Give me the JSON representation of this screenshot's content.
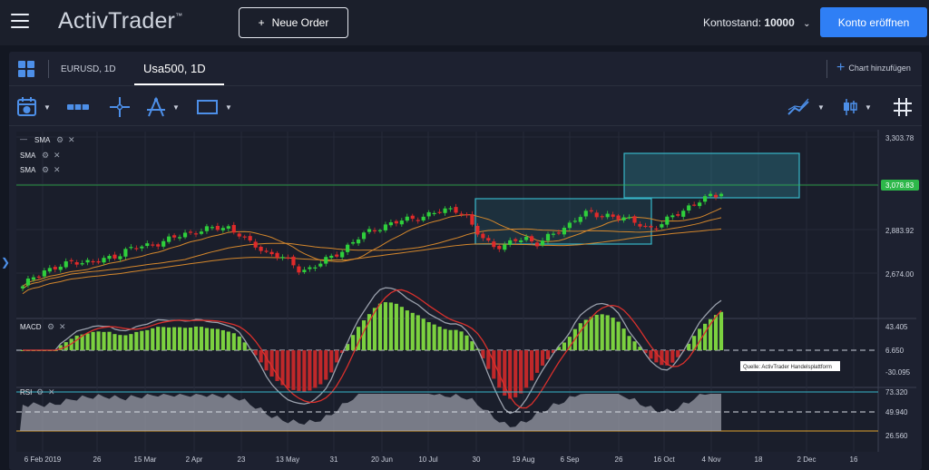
{
  "header": {
    "logo": "ActivTrader",
    "logo_tm": "™",
    "new_order_label": "Neue Order",
    "new_order_icon": "+",
    "balance_label": "Kontostand:",
    "balance_value": "10000",
    "open_account_label": "Konto eröffnen"
  },
  "tabs": {
    "tab1": "EURUSD, 1D",
    "tab2": "Usa500, 1D",
    "add_chart": "Chart hinzufügen"
  },
  "toolbar": {
    "icons": [
      "calendar-icon",
      "timeframe-icon",
      "crosshair-icon",
      "drawing-icon",
      "rectangle-icon",
      "indicator-icon",
      "candle-type-icon",
      "grid-icon"
    ]
  },
  "indicators": {
    "sma1": "SMA",
    "sma2": "SMA",
    "sma3": "SMA",
    "macd": "MACD",
    "rsi": "RSI"
  },
  "price_axis": [
    "3,303.78",
    "3,078.83",
    "2,883.92",
    "2,674.00"
  ],
  "current_price": "3,078.83",
  "macd_axis": [
    "43.405",
    "6.650",
    "-30.095"
  ],
  "rsi_axis": [
    "73.320",
    "49.940",
    "26.560"
  ],
  "source_note": "Quelle: ActivTrader Handelsplattform",
  "x_axis": [
    "6 Feb 2019",
    "26",
    "15 Mar",
    "2 Apr",
    "23",
    "13 May",
    "31",
    "20 Jun",
    "10 Jul",
    "30",
    "19 Aug",
    "6 Sep",
    "26",
    "16 Oct",
    "4 Nov",
    "18",
    "2 Dec",
    "16"
  ],
  "colors": {
    "accent": "#2f7ff5",
    "up_candle": "#2fcf3c",
    "down_candle": "#e02a2a",
    "sma": "#d4872c",
    "highlight_box": "#37b6c8",
    "price_tag": "#2db84a"
  },
  "chart_data": {
    "type": "candlestick",
    "symbol": "Usa500",
    "timeframe": "1D",
    "ylim": [
      2580,
      3330
    ],
    "close_approx": [
      2700,
      2745,
      2770,
      2775,
      2790,
      2810,
      2805,
      2800,
      2815,
      2830,
      2850,
      2860,
      2870,
      2880,
      2890,
      2905,
      2920,
      2930,
      2935,
      2940,
      2945,
      2920,
      2880,
      2860,
      2840,
      2830,
      2800,
      2770,
      2780,
      2800,
      2820,
      2850,
      2880,
      2910,
      2930,
      2950,
      2960,
      2970,
      2980,
      2990,
      3000,
      3010,
      3020,
      3000,
      2930,
      2890,
      2870,
      2870,
      2890,
      2900,
      2880,
      2900,
      2920,
      2950,
      2990,
      3000,
      2990,
      2995,
      2985,
      2970,
      2960,
      2940,
      2950,
      2980,
      3010,
      3030,
      3050,
      3070,
      3080
    ],
    "last_price": 3078.83
  }
}
